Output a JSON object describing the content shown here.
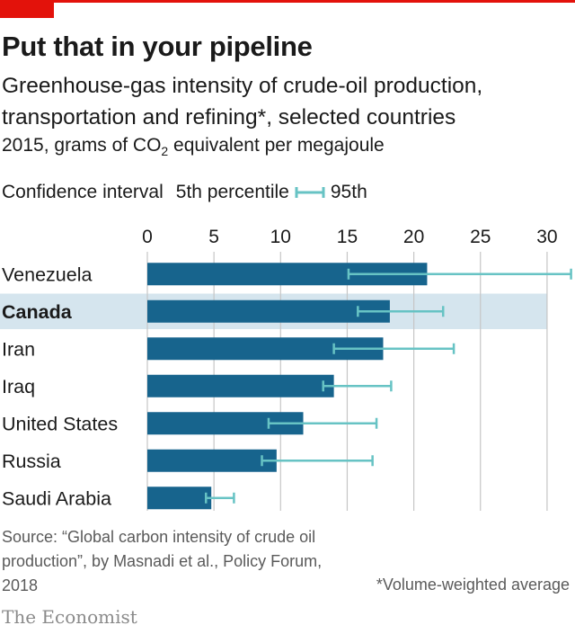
{
  "header": {
    "title": "Put that in your pipeline",
    "subtitle": "Greenhouse-gas intensity of crude-oil production, transportation and refining*, selected countries",
    "unit_prefix": "2015, grams of CO",
    "unit_sub": "2",
    "unit_suffix": " equivalent per megajoule"
  },
  "legend": {
    "title": "Confidence interval",
    "low_label": "5th percentile",
    "high_label": "95th"
  },
  "footer": {
    "source": "Source: “Global carbon intensity of crude oil production”, by Masnadi et al., Policy Forum, 2018",
    "note": "*Volume-weighted average",
    "brand": "The Economist"
  },
  "colors": {
    "bar": "#17648d",
    "whisker": "#67c3c4",
    "highlight": "#d5e5ee",
    "grid": "#c6c6c6",
    "accent_red": "#e3120b"
  },
  "chart_data": {
    "type": "bar",
    "orientation": "horizontal",
    "title": "Put that in your pipeline",
    "x_ticks": [
      0,
      5,
      10,
      15,
      20,
      25,
      30
    ],
    "xlim": [
      0,
      30
    ],
    "grid": true,
    "highlighted_category": "Canada",
    "categories": [
      "Venezuela",
      "Canada",
      "Iran",
      "Iraq",
      "United States",
      "Russia",
      "Saudi Arabia"
    ],
    "values": [
      21.0,
      18.2,
      17.7,
      14.0,
      11.7,
      9.7,
      4.8
    ],
    "ci_low": [
      15.1,
      15.8,
      14.0,
      13.2,
      9.1,
      8.6,
      4.4
    ],
    "ci_high": [
      31.8,
      22.2,
      23.0,
      18.3,
      17.2,
      16.9,
      6.5
    ]
  }
}
